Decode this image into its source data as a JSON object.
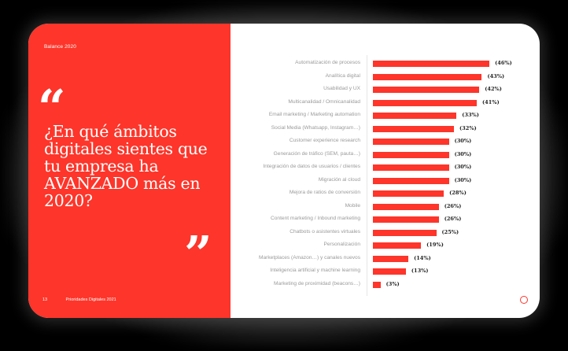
{
  "page": {
    "kicker": "Balance 2020",
    "quote_open": "“",
    "quote_close": "”",
    "question": "¿En qué ámbitos digitales sientes que tu empresa ha AVANZADO más en 2020?",
    "footer": {
      "page_number": "13",
      "publication": "Prioridades Digitales 2021"
    },
    "colors": {
      "accent": "#fe352a",
      "label": "#9a9a9a",
      "value": "#222222"
    }
  },
  "chart_data": {
    "type": "bar",
    "orientation": "horizontal",
    "title": "¿En qué ámbitos digitales sientes que tu empresa ha AVANZADO más en 2020?",
    "xlabel": "",
    "ylabel": "",
    "unit": "%",
    "grid": false,
    "legend": null,
    "categories": [
      "Automatización de procesos",
      "Analítica digital",
      "Usabilidad y UX",
      "Multicanalidad / Omnicanalidad",
      "Email marketing / Marketing automation",
      "Social Media (Whatsapp, Instagram…)",
      "Customer experience research",
      "Generación de tráfico (SEM, pauta…)",
      "Integración de datos de usuarios / clientes",
      "Migración al cloud",
      "Mejora de ratios de conversión",
      "Mobile",
      "Content marketing / Inbound marketing",
      "Chatbots o asistentes virtuales",
      "Personalización",
      "Marketplaces (Amazon…) y canales nuevos",
      "Inteligencia artificial y machine learning",
      "Marketing de proximidad (beacons…)"
    ],
    "values": [
      46,
      43,
      42,
      41,
      33,
      32,
      30,
      30,
      30,
      30,
      28,
      26,
      26,
      25,
      19,
      14,
      13,
      3
    ],
    "value_labels": [
      "(46%)",
      "(43%)",
      "(42%)",
      "(41%)",
      "(33%)",
      "(32%)",
      "(30%)",
      "(30%)",
      "(30%)",
      "(30%)",
      "(28%)",
      "(26%)",
      "(26%)",
      "(25%)",
      "(19%)",
      "(14%)",
      "(13%)",
      "(3%)"
    ],
    "xlim": [
      0,
      50
    ]
  }
}
